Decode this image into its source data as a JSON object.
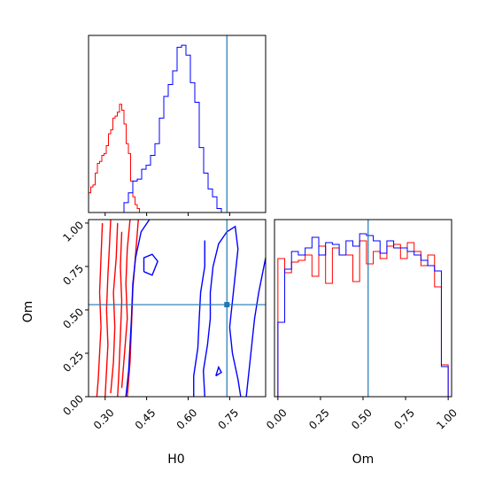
{
  "chart_data": [
    {
      "type": "histogram",
      "panel": "H0 marginal",
      "xlim": [
        0.24,
        0.88
      ],
      "truth": 0.74,
      "series": [
        {
          "color": "#ff0000",
          "bin_start": 0.24,
          "bin_width": 0.008,
          "counts": [
            0.1,
            0.13,
            0.14,
            0.2,
            0.25,
            0.26,
            0.29,
            0.3,
            0.34,
            0.4,
            0.42,
            0.48,
            0.49,
            0.51,
            0.55,
            0.52,
            0.45,
            0.35,
            0.3,
            0.16,
            0.08,
            0.04,
            0.02,
            0
          ]
        },
        {
          "color": "#0000ff",
          "bin_start": 0.24,
          "bin_width": 0.016,
          "counts": [
            0,
            0,
            0,
            0,
            0,
            0,
            0,
            0,
            0.05,
            0.1,
            0.16,
            0.17,
            0.22,
            0.24,
            0.29,
            0.35,
            0.48,
            0.59,
            0.65,
            0.72,
            0.84,
            0.85,
            0.8,
            0.66,
            0.56,
            0.33,
            0.2,
            0.12,
            0.08,
            0.02
          ]
        }
      ]
    },
    {
      "type": "contour",
      "panel": "H0 vs Om",
      "xlabel": "H0",
      "ylabel": "Om",
      "xlim": [
        0.24,
        0.88
      ],
      "ylim": [
        0,
        1.02
      ],
      "xticks": [
        "0.30",
        "0.45",
        "0.60",
        "0.75"
      ],
      "yticks": [
        "0.00",
        "0.25",
        "0.50",
        "0.75",
        "1.00"
      ],
      "truth": {
        "H0": 0.74,
        "Om": 0.53
      },
      "series": [
        {
          "color": "#ff0000",
          "level_lines": [
            [
              [
                0.27,
                0.0
              ],
              [
                0.275,
                0.1
              ],
              [
                0.28,
                0.25
              ],
              [
                0.285,
                0.4
              ],
              [
                0.28,
                0.6
              ],
              [
                0.285,
                0.8
              ],
              [
                0.29,
                1.0
              ]
            ],
            [
              [
                0.3,
                0.0
              ],
              [
                0.305,
                0.15
              ],
              [
                0.31,
                0.3
              ],
              [
                0.305,
                0.5
              ],
              [
                0.31,
                0.7
              ],
              [
                0.315,
                0.85
              ],
              [
                0.32,
                1.02
              ]
            ],
            [
              [
                0.32,
                0.02
              ],
              [
                0.33,
                0.2
              ],
              [
                0.335,
                0.4
              ],
              [
                0.33,
                0.6
              ],
              [
                0.34,
                0.8
              ],
              [
                0.345,
                1.0
              ]
            ],
            [
              [
                0.345,
                0.0
              ],
              [
                0.35,
                0.15
              ],
              [
                0.355,
                0.35
              ],
              [
                0.36,
                0.55
              ],
              [
                0.355,
                0.75
              ],
              [
                0.36,
                0.95
              ]
            ],
            [
              [
                0.36,
                0.05
              ],
              [
                0.37,
                0.25
              ],
              [
                0.38,
                0.45
              ],
              [
                0.375,
                0.65
              ],
              [
                0.38,
                0.85
              ],
              [
                0.39,
                1.02
              ]
            ],
            [
              [
                0.38,
                0.0
              ],
              [
                0.39,
                0.2
              ],
              [
                0.395,
                0.4
              ],
              [
                0.4,
                0.62
              ],
              [
                0.41,
                0.82
              ],
              [
                0.42,
                1.02
              ]
            ]
          ]
        },
        {
          "color": "#0000ff",
          "level_lines": [
            [
              [
                0.375,
                0.0
              ],
              [
                0.385,
                0.15
              ],
              [
                0.39,
                0.3
              ],
              [
                0.395,
                0.45
              ],
              [
                0.4,
                0.65
              ],
              [
                0.41,
                0.8
              ],
              [
                0.43,
                0.95
              ],
              [
                0.46,
                1.02
              ]
            ],
            [
              [
                0.44,
                0.72
              ],
              [
                0.47,
                0.7
              ],
              [
                0.49,
                0.78
              ],
              [
                0.47,
                0.82
              ],
              [
                0.44,
                0.8
              ],
              [
                0.44,
                0.72
              ]
            ],
            [
              [
                0.66,
                0.0
              ],
              [
                0.655,
                0.15
              ],
              [
                0.67,
                0.3
              ],
              [
                0.68,
                0.45
              ],
              [
                0.68,
                0.6
              ],
              [
                0.69,
                0.75
              ],
              [
                0.71,
                0.88
              ],
              [
                0.74,
                0.95
              ],
              [
                0.77,
                0.98
              ],
              [
                0.78,
                0.85
              ],
              [
                0.77,
                0.7
              ],
              [
                0.76,
                0.55
              ],
              [
                0.75,
                0.4
              ],
              [
                0.76,
                0.25
              ],
              [
                0.78,
                0.1
              ],
              [
                0.79,
                0.0
              ]
            ],
            [
              [
                0.62,
                0.0
              ],
              [
                0.62,
                0.12
              ],
              [
                0.635,
                0.28
              ],
              [
                0.64,
                0.45
              ],
              [
                0.645,
                0.6
              ],
              [
                0.66,
                0.75
              ],
              [
                0.66,
                0.9
              ]
            ],
            [
              [
                0.81,
                0.0
              ],
              [
                0.82,
                0.15
              ],
              [
                0.83,
                0.3
              ],
              [
                0.84,
                0.45
              ],
              [
                0.855,
                0.6
              ],
              [
                0.87,
                0.72
              ],
              [
                0.88,
                0.8
              ]
            ],
            [
              [
                0.7,
                0.12
              ],
              [
                0.72,
                0.14
              ],
              [
                0.71,
                0.17
              ],
              [
                0.7,
                0.12
              ]
            ]
          ]
        }
      ]
    },
    {
      "type": "histogram",
      "panel": "Om marginal",
      "xlabel": "Om",
      "xlim": [
        -0.02,
        1.02
      ],
      "xticks": [
        "0.00",
        "0.25",
        "0.50",
        "0.75",
        "1.00"
      ],
      "truth": 0.53,
      "series": [
        {
          "color": "#ff0000",
          "bin_start": 0.0,
          "bin_width": 0.04,
          "counts": [
            0.78,
            0.7,
            0.76,
            0.77,
            0.8,
            0.68,
            0.85,
            0.64,
            0.84,
            0.8,
            0.8,
            0.65,
            0.88,
            0.75,
            0.82,
            0.78,
            0.85,
            0.86,
            0.78,
            0.87,
            0.82,
            0.74,
            0.8,
            0.62,
            0.18
          ]
        },
        {
          "color": "#0000ff",
          "bin_start": 0.0,
          "bin_width": 0.04,
          "counts": [
            0.42,
            0.72,
            0.82,
            0.8,
            0.84,
            0.9,
            0.8,
            0.87,
            0.86,
            0.8,
            0.88,
            0.85,
            0.92,
            0.91,
            0.88,
            0.81,
            0.88,
            0.84,
            0.84,
            0.82,
            0.8,
            0.77,
            0.74,
            0.71,
            0.17
          ]
        }
      ]
    }
  ]
}
